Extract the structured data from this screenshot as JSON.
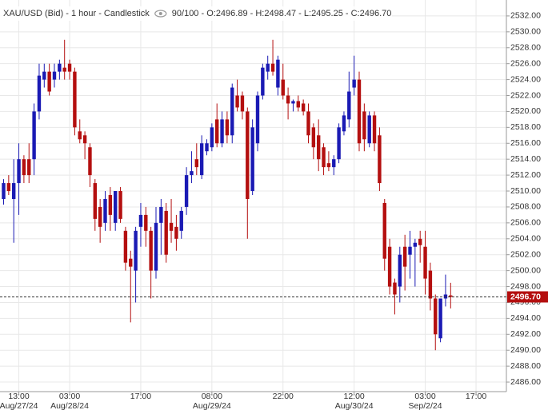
{
  "chart_data": {
    "type": "candlestick",
    "title": "XAU/USD (Bid) - 1 hour - Candlestick",
    "subtitle": "90/100 - O:2496.89 - H:2498.47 - L:2495.25 - C:2496.70",
    "up_color": "#1a1ab4",
    "down_color": "#b40f0f",
    "grid": true,
    "ylim": [
      2484.8,
      2534
    ],
    "yticks": [
      {
        "value": 2486,
        "label": "2486.00"
      },
      {
        "value": 2488,
        "label": "2488.00"
      },
      {
        "value": 2490,
        "label": "2490.00"
      },
      {
        "value": 2492,
        "label": "2492.00"
      },
      {
        "value": 2494,
        "label": "2494.00"
      },
      {
        "value": 2496,
        "label": "2496.00"
      },
      {
        "value": 2498,
        "label": "2498.00"
      },
      {
        "value": 2500,
        "label": "2500.00"
      },
      {
        "value": 2502,
        "label": "2502.00"
      },
      {
        "value": 2504,
        "label": "2504.00"
      },
      {
        "value": 2506,
        "label": "2506.00"
      },
      {
        "value": 2508,
        "label": "2508.00"
      },
      {
        "value": 2510,
        "label": "2510.00"
      },
      {
        "value": 2512,
        "label": "2512.00"
      },
      {
        "value": 2514,
        "label": "2514.00"
      },
      {
        "value": 2516,
        "label": "2516.00"
      },
      {
        "value": 2518,
        "label": "2518.00"
      },
      {
        "value": 2520,
        "label": "2520.00"
      },
      {
        "value": 2522,
        "label": "2522.00"
      },
      {
        "value": 2524,
        "label": "2524.00"
      },
      {
        "value": 2526,
        "label": "2526.00"
      },
      {
        "value": 2528,
        "label": "2528.00"
      },
      {
        "value": 2530,
        "label": "2530.00"
      },
      {
        "value": 2532,
        "label": "2532.00"
      }
    ],
    "last_price": {
      "value": 2496.7,
      "label": "2496.70"
    },
    "categories": [
      null,
      null,
      null,
      "13:00",
      null,
      null,
      null,
      null,
      null,
      null,
      null,
      null,
      null,
      "03:00",
      null,
      null,
      null,
      null,
      null,
      null,
      null,
      null,
      null,
      null,
      null,
      null,
      null,
      "17:00",
      null,
      null,
      null,
      null,
      null,
      null,
      null,
      null,
      null,
      null,
      null,
      null,
      null,
      "08:00",
      null,
      null,
      null,
      null,
      null,
      null,
      null,
      null,
      null,
      null,
      null,
      null,
      null,
      "22:00",
      null,
      null,
      null,
      null,
      null,
      null,
      null,
      null,
      null,
      null,
      null,
      null,
      null,
      "12:00",
      null,
      null,
      null,
      null,
      null,
      null,
      null,
      null,
      null,
      null,
      null,
      null,
      null,
      "03:00",
      null,
      null,
      null,
      null,
      null,
      null,
      null,
      null,
      null,
      "17:00"
    ],
    "dates": [
      null,
      null,
      null,
      "Aug/27/24",
      null,
      null,
      null,
      null,
      null,
      null,
      null,
      null,
      null,
      "Aug/28/24",
      null,
      null,
      null,
      null,
      null,
      null,
      null,
      null,
      null,
      null,
      null,
      null,
      null,
      null,
      null,
      null,
      null,
      null,
      null,
      null,
      null,
      null,
      null,
      null,
      null,
      null,
      null,
      "Aug/29/24",
      null,
      null,
      null,
      null,
      null,
      null,
      null,
      null,
      null,
      null,
      null,
      null,
      null,
      null,
      null,
      null,
      null,
      null,
      null,
      null,
      null,
      null,
      null,
      null,
      null,
      null,
      null,
      "Aug/30/24",
      null,
      null,
      null,
      null,
      null,
      null,
      null,
      null,
      null,
      null,
      null,
      null,
      null,
      "Sep/2/24",
      null,
      null,
      null,
      null,
      null,
      null,
      null,
      null,
      null,
      null
    ],
    "open": [
      2509,
      2511,
      2509,
      2511,
      2514,
      2514,
      2514,
      2520,
      2524,
      2525,
      2524,
      2525,
      2525.5,
      2526,
      2525,
      2517.5,
      2517,
      2515.5,
      2511,
      2508,
      2506,
      2509.5,
      2506,
      2510,
      2505,
      2501.5,
      2500,
      2505.5,
      2507,
      2505,
      2500,
      2506,
      2507.5,
      2506,
      2505.5,
      2505,
      2508,
      2512,
      2514,
      2512,
      2515,
      2515.5,
      2519,
      2516,
      2519,
      2517,
      2522,
      2522,
      2520,
      2510,
      2516,
      2522,
      2525,
      2526,
      2523,
      2524,
      2522,
      2521,
      2521.3,
      2521,
      2520,
      2518,
      2517,
      2515.5,
      2513.5,
      2513,
      2514,
      2517.5,
      2519,
      2523,
      2524,
      2520,
      2516,
      2519.5,
      2517,
      2508.5,
      2503,
      2498.5,
      2498,
      2503,
      2502,
      2503,
      2504,
      2503,
      2500,
      2496.5,
      2491.5,
      2496.5,
      2496.89,
      null,
      null,
      null,
      null,
      null
    ],
    "high": [
      2511.5,
      2512,
      2514,
      2516,
      2514.5,
      2516,
      2521,
      2526,
      2526,
      2526,
      2526,
      2526.5,
      2529,
      2526.5,
      2525.5,
      2519,
      2517.5,
      2516,
      2511.5,
      2509,
      2510,
      2510.5,
      2510,
      2510.5,
      2505.5,
      2502.5,
      2505.5,
      2508.5,
      2508,
      2505.5,
      2508,
      2509,
      2508.5,
      2509,
      2507,
      2508,
      2513,
      2515,
      2516,
      2517,
      2516.5,
      2518.5,
      2521,
      2520,
      2520,
      2523.5,
      2524,
      2522.5,
      2520.5,
      2519,
      2522.5,
      2526,
      2527,
      2529,
      2527,
      2526,
      2523,
      2521.5,
      2522,
      2521.5,
      2521,
      2518.5,
      2519,
      2516,
      2515,
      2514.5,
      2518.5,
      2520,
      2525,
      2527,
      2525,
      2521,
      2520,
      2520,
      2518,
      2509,
      2504,
      2499,
      2503,
      2504.5,
      2505,
      2504,
      2505,
      2505,
      2501,
      2497,
      2496.5,
      2499.5,
      2498.47,
      null,
      null,
      null,
      null,
      null
    ],
    "low": [
      2508.3,
      2509.5,
      2503.5,
      2507,
      2511,
      2511,
      2512,
      2519,
      2523,
      2522,
      2523,
      2524,
      2524,
      2524,
      2517,
      2516,
      2514,
      2510.5,
      2505,
      2503.5,
      2505,
      2505,
      2505,
      2506,
      2500,
      2493.5,
      2496,
      2503,
      2503,
      2496.5,
      2499,
      2502,
      2501,
      2503.5,
      2502.5,
      2504,
      2507,
      2511,
      2512,
      2511.5,
      2514.5,
      2515,
      2515.5,
      2515.5,
      2516,
      2516,
      2520,
      2519,
      2504,
      2509.5,
      2515,
      2521.5,
      2524,
      2524.5,
      2522,
      2521.5,
      2519,
      2520,
      2520,
      2519.5,
      2516,
      2514,
      2512.5,
      2512,
      2512.5,
      2512,
      2513.5,
      2517,
      2518,
      2522,
      2515,
      2515,
      2515.5,
      2515,
      2510,
      2500,
      2497,
      2494.5,
      2496,
      2497.5,
      2499,
      2498,
      2501,
      2497,
      2495,
      2490,
      2491,
      2495.5,
      2495.25,
      null,
      null,
      null,
      null,
      null
    ],
    "close": [
      2511,
      2510,
      2511,
      2514,
      2512,
      2512,
      2520,
      2524.5,
      2525,
      2522.5,
      2525,
      2526,
      2525,
      2525,
      2518,
      2516.5,
      2516,
      2512,
      2506.5,
      2505.5,
      2509,
      2507,
      2510,
      2506.5,
      2501,
      2500.5,
      2505,
      2507,
      2505,
      2500,
      2506,
      2508,
      2502,
      2505,
      2504,
      2507.5,
      2512,
      2512.5,
      2513,
      2516,
      2516,
      2518,
      2516,
      2519,
      2517,
      2523,
      2520.5,
      2520,
      2509,
      2518,
      2522,
      2525.5,
      2526,
      2525,
      2526.5,
      2522,
      2521,
      2521.3,
      2520.5,
      2520,
      2517,
      2515.5,
      2514,
      2513,
      2513,
      2514,
      2518,
      2519.5,
      2522.5,
      2524,
      2516,
      2516.5,
      2519.5,
      2516,
      2511,
      2501.5,
      2498,
      2497,
      2502,
      2500.5,
      2503,
      2503.5,
      2503.2,
      2499,
      2496.5,
      2492,
      2496.5,
      2497,
      2496.7,
      null,
      null,
      null,
      null,
      null
    ]
  }
}
